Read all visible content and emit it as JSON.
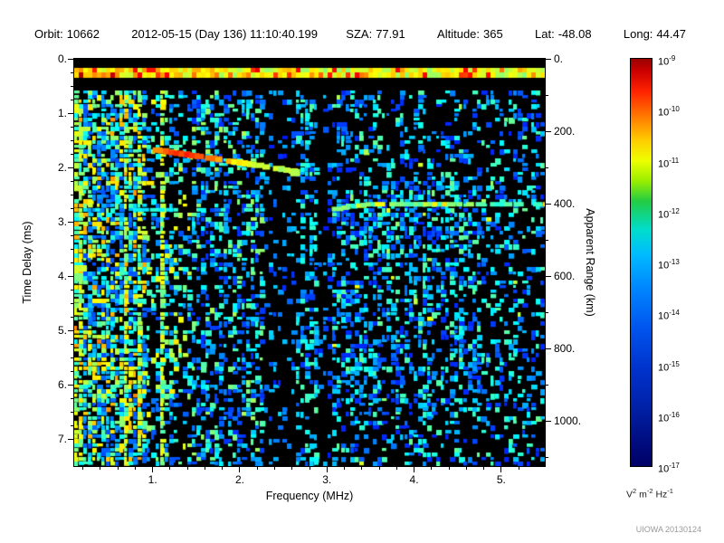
{
  "header": {
    "orbit_label": "Orbit:",
    "orbit": "10662",
    "datetime": "2012-05-15 (Day 136) 11:10:40.199",
    "sza_label": "SZA:",
    "sza": "77.91",
    "altitude_label": "Altitude:",
    "altitude": "365",
    "lat_label": "Lat:",
    "lat": "-48.08",
    "long_label": "Long:",
    "long": "44.47"
  },
  "watermark": "UIOWA 20130124",
  "chart_data": {
    "type": "heatmap",
    "title": "Radar sounder ionogram (spectrogram of received power vs frequency and time delay)",
    "xlabel": "Frequency (MHz)",
    "ylabel_left": "Time Delay (ms)",
    "ylabel_right": "Apparent Range (km)",
    "x_range_mhz": [
      0.1,
      5.5
    ],
    "y_range_ms": [
      0,
      7.5
    ],
    "x_ticks": {
      "values": [
        1,
        2,
        3,
        4,
        5
      ],
      "labels": [
        "1.",
        "2.",
        "3.",
        "4.",
        "5."
      ]
    },
    "y_left_ticks": {
      "values": [
        0,
        1,
        2,
        3,
        4,
        5,
        6,
        7
      ],
      "labels": [
        "0.",
        "1.",
        "2.",
        "3.",
        "4.",
        "5.",
        "6.",
        "7."
      ]
    },
    "y_right_ticks": {
      "values_km": [
        0,
        200,
        400,
        600,
        800,
        1000
      ],
      "labels": [
        "0.",
        "200.",
        "400.",
        "600.",
        "800.",
        "1000."
      ]
    },
    "km_per_ms": 150,
    "colorbar": {
      "unit": "V^2 m^-2 Hz^-1",
      "scale": "log",
      "max": "1e-9",
      "min": "1e-17",
      "tick_exponents": [
        -9,
        -10,
        -11,
        -12,
        -13,
        -14,
        -15,
        -16,
        -17
      ]
    },
    "features": {
      "plasma_oscillation_band": {
        "t_start_ms": 0.2,
        "t_end_ms": 0.36,
        "f_start_mhz": 0.1,
        "f_end_mhz": 5.5
      },
      "ionosphere_echo_trace": {
        "f_start_mhz": 1.0,
        "f_end_mhz": 2.62,
        "t_start_ms": 1.68,
        "t_end_ms": 2.08
      },
      "ionosphere_echo_second": {
        "t_ms": 2.78,
        "f_start_mhz": 0.25,
        "f_end_mhz": 2.3
      },
      "surface_reflection_trace": {
        "t_ms": 2.67,
        "f_start_mhz": 3.0,
        "f_end_mhz": 5.5,
        "apparent_range_km": 400
      },
      "noise_regions": {
        "dense_low_freq_max_mhz": 0.92,
        "medium_low_freq_max_mhz": 1.45,
        "attenuation_bands_mhz": [
          [
            2.3,
            2.62
          ],
          [
            2.9,
            3.08
          ]
        ]
      }
    }
  }
}
